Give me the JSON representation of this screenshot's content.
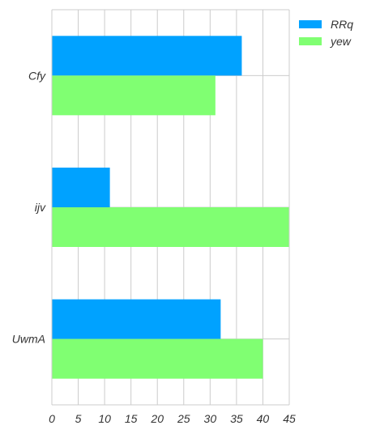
{
  "chart_data": {
    "type": "bar",
    "orientation": "horizontal",
    "categories": [
      "Cfy",
      "ijv",
      "UwmA"
    ],
    "series": [
      {
        "name": "RRq",
        "values": [
          36,
          11,
          32
        ],
        "color": "#00a2ff"
      },
      {
        "name": "yew",
        "values": [
          31,
          45,
          40
        ],
        "color": "#80ff72"
      }
    ],
    "xlim": [
      0,
      45
    ],
    "xticks": [
      0,
      5,
      10,
      15,
      20,
      25,
      30,
      35,
      40,
      45
    ],
    "grid": true,
    "legend_position": "top-right",
    "title": "",
    "xlabel": "",
    "ylabel": ""
  }
}
